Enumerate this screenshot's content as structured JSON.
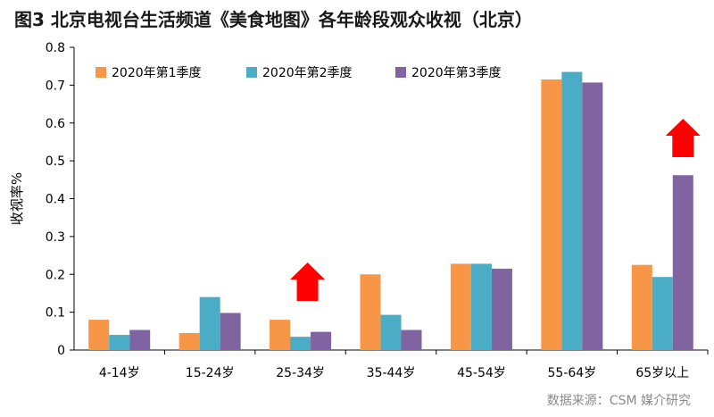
{
  "title": "图3 北京电视台生活频道《美食地图》各年龄段观众收视（北京）",
  "source": "数据来源：CSM 媒介研究",
  "chart_data": {
    "type": "bar",
    "ylabel": "收视率%",
    "ylim": [
      0,
      0.8
    ],
    "yticks": [
      "0",
      "0.1",
      "0.2",
      "0.3",
      "0.4",
      "0.5",
      "0.6",
      "0.7",
      "0.8"
    ],
    "categories": [
      "4-14岁",
      "15-24岁",
      "25-34岁",
      "35-44岁",
      "45-54岁",
      "55-64岁",
      "65岁以上"
    ],
    "series": [
      {
        "name": "2020年第1季度",
        "color": "#f79646",
        "values": [
          0.08,
          0.045,
          0.08,
          0.2,
          0.228,
          0.715,
          0.225
        ]
      },
      {
        "name": "2020年第2季度",
        "color": "#4bacc6",
        "values": [
          0.04,
          0.14,
          0.035,
          0.093,
          0.228,
          0.735,
          0.193
        ]
      },
      {
        "name": "2020年第3季度",
        "color": "#8064a2",
        "values": [
          0.053,
          0.098,
          0.048,
          0.053,
          0.215,
          0.707,
          0.462
        ]
      }
    ],
    "legend_position": "top-left",
    "grid": false,
    "annotations": [
      {
        "type": "up-arrow",
        "color": "#ff0000",
        "category": "25-34岁"
      },
      {
        "type": "up-arrow",
        "color": "#ff0000",
        "category": "65岁以上"
      }
    ]
  }
}
